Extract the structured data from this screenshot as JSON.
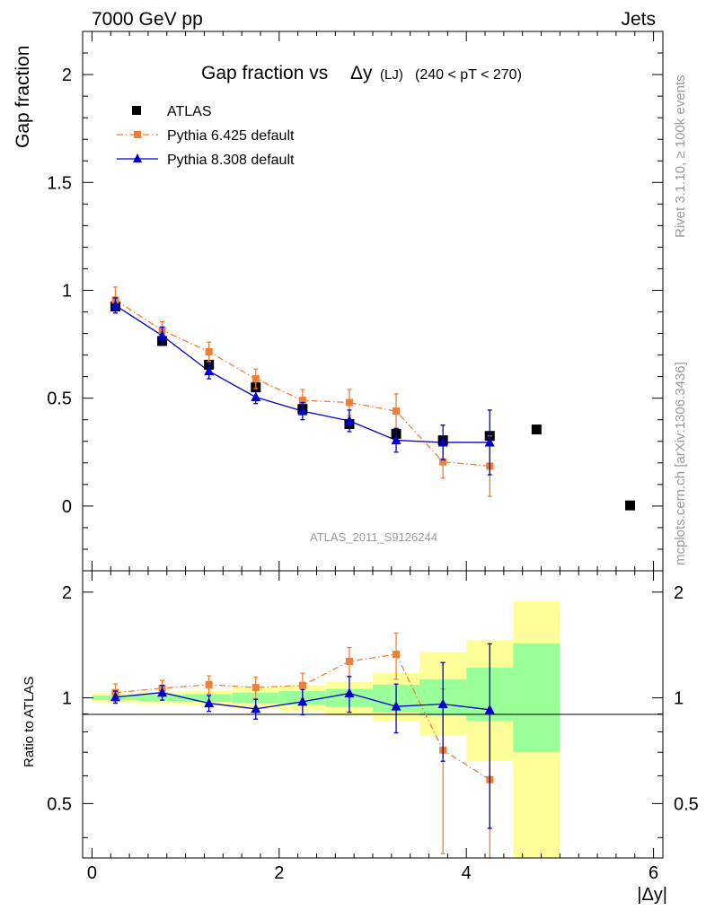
{
  "header": {
    "left": "7000 GeV pp",
    "right": "Jets"
  },
  "side_labels": {
    "rivet": "Rivet 3.1.10, ≥ 100k events",
    "mcplots": "mcplots.cern.ch [arXiv:1306.3436]"
  },
  "chart_data": [
    {
      "type": "scatter",
      "panel": "main",
      "title": "Gap fraction vs",
      "title_symbol": "Δy",
      "title_sub": "(LJ)",
      "title_range": "(240 < pT < 270)",
      "ylabel": "Gap fraction",
      "analysis_label": "ATLAS_2011_S9126244",
      "xlim": [
        -0.1,
        6.1
      ],
      "ylim": [
        -0.3,
        2.2
      ],
      "yticks": [
        0,
        0.5,
        1,
        1.5,
        2
      ],
      "ytick_labels": [
        "0",
        "0.5",
        "1",
        "1.5",
        "2"
      ],
      "legend_position": "top-left",
      "series": [
        {
          "name": "ATLAS",
          "color": "#000000",
          "marker": "square",
          "x": [
            0.25,
            0.75,
            1.25,
            1.75,
            2.25,
            2.75,
            3.25,
            3.75,
            4.25,
            4.75,
            5.75
          ],
          "y": [
            0.925,
            0.765,
            0.655,
            0.55,
            0.45,
            0.38,
            0.335,
            0.305,
            0.325,
            0.355,
            0.003
          ],
          "yerr": [
            0.015,
            0.015,
            0.015,
            0.015,
            0.015,
            0.015,
            0.015,
            0.015,
            0.015,
            0.015,
            0.0
          ]
        },
        {
          "name": "Pythia 6.425 default",
          "color": "#f07e35",
          "marker": "square",
          "line": "dashdot",
          "x": [
            0.25,
            0.75,
            1.25,
            1.75,
            2.25,
            2.75,
            3.25,
            3.75,
            4.25
          ],
          "y": [
            0.955,
            0.815,
            0.715,
            0.59,
            0.49,
            0.48,
            0.44,
            0.205,
            0.185
          ],
          "yerr": [
            0.06,
            0.04,
            0.045,
            0.045,
            0.05,
            0.06,
            0.08,
            0.075,
            0.14
          ]
        },
        {
          "name": "Pythia 8.308 default",
          "color": "#0000cc",
          "marker": "triangle",
          "line": "solid",
          "x": [
            0.25,
            0.75,
            1.25,
            1.75,
            2.25,
            2.75,
            3.25,
            3.75,
            4.25
          ],
          "y": [
            0.93,
            0.79,
            0.625,
            0.505,
            0.44,
            0.395,
            0.305,
            0.295,
            0.295
          ],
          "yerr": [
            0.035,
            0.04,
            0.035,
            0.03,
            0.04,
            0.05,
            0.055,
            0.08,
            0.15
          ]
        }
      ]
    },
    {
      "type": "scatter",
      "panel": "ratio",
      "ylabel": "Ratio to ATLAS",
      "xlabel": "|Δy|",
      "xlim": [
        -0.1,
        6.1
      ],
      "ylim": [
        0.35,
        2.3
      ],
      "xticks": [
        0,
        2,
        4,
        6
      ],
      "xtick_labels": [
        "0",
        "2",
        "4",
        "6"
      ],
      "yticks": [
        0.5,
        1,
        2
      ],
      "ytick_labels": [
        "0.5",
        "1",
        "2"
      ],
      "uncertainty_bands": {
        "x_edges": [
          0,
          0.5,
          1,
          1.5,
          2,
          2.5,
          3,
          3.5,
          4,
          4.5,
          5
        ],
        "inner_green": [
          [
            0.985,
            1.015
          ],
          [
            0.98,
            1.02
          ],
          [
            0.975,
            1.025
          ],
          [
            0.965,
            1.035
          ],
          [
            0.955,
            1.045
          ],
          [
            0.94,
            1.06
          ],
          [
            0.91,
            1.09
          ],
          [
            0.89,
            1.13
          ],
          [
            0.86,
            1.22
          ],
          [
            0.7,
            1.43
          ]
        ],
        "outer_yellow": [
          [
            0.97,
            1.03
          ],
          [
            0.96,
            1.04
          ],
          [
            0.95,
            1.05
          ],
          [
            0.93,
            1.07
          ],
          [
            0.915,
            1.085
          ],
          [
            0.89,
            1.11
          ],
          [
            0.86,
            1.18
          ],
          [
            0.78,
            1.35
          ],
          [
            0.66,
            1.46
          ],
          [
            0.35,
            1.88
          ]
        ]
      },
      "series": [
        {
          "name": "Pythia 6.425 default",
          "color": "#f07e35",
          "x": [
            0.25,
            0.75,
            1.25,
            1.75,
            2.25,
            2.75,
            3.25,
            3.75,
            4.25
          ],
          "y": [
            1.035,
            1.065,
            1.09,
            1.07,
            1.085,
            1.27,
            1.33,
            0.71,
            0.585
          ],
          "yerr": [
            0.06,
            0.055,
            0.065,
            0.075,
            0.09,
            0.12,
            0.2,
            0.35,
            0.35
          ]
        },
        {
          "name": "Pythia 8.308 default",
          "color": "#0000cc",
          "x": [
            0.25,
            0.75,
            1.25,
            1.75,
            2.25,
            2.75,
            3.25,
            3.75,
            4.25
          ],
          "y": [
            1.005,
            1.035,
            0.965,
            0.93,
            0.975,
            1.03,
            0.945,
            0.96,
            0.925
          ],
          "yerr": [
            0.04,
            0.05,
            0.05,
            0.06,
            0.08,
            0.12,
            0.15,
            0.3,
            0.5
          ]
        }
      ]
    }
  ]
}
